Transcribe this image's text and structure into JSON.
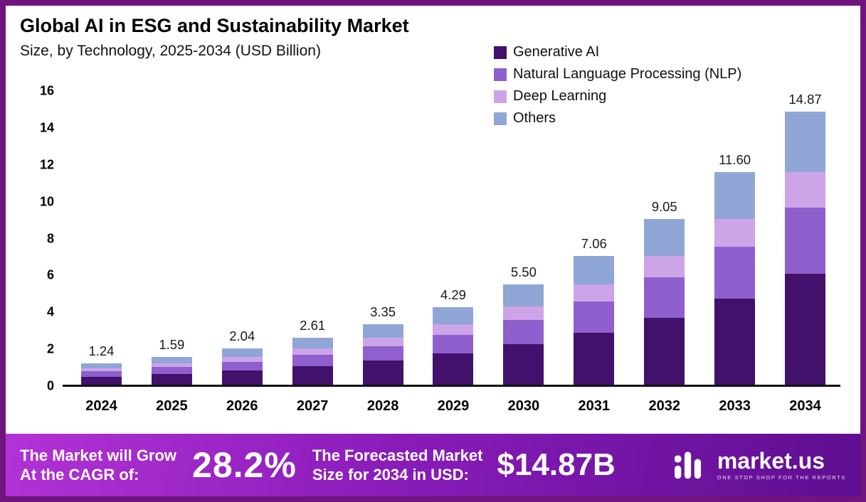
{
  "title": "Global AI in ESG and Sustainability Market",
  "subtitle": "Size, by Technology, 2025-2034 (USD Billion)",
  "chart_data": {
    "type": "bar",
    "stacked": true,
    "title": "Global AI in ESG and Sustainability Market Size, by Technology, 2025-2034 (USD Billion)",
    "categories": [
      "2024",
      "2025",
      "2026",
      "2027",
      "2028",
      "2029",
      "2030",
      "2031",
      "2032",
      "2033",
      "2034"
    ],
    "series": [
      {
        "name": "Generative AI",
        "color": "#41116b",
        "values": [
          0.51,
          0.65,
          0.84,
          1.07,
          1.37,
          1.76,
          2.26,
          2.89,
          3.71,
          4.76,
          6.1
        ]
      },
      {
        "name": "Natural Language Processing (NLP)",
        "color": "#8f5fce",
        "values": [
          0.3,
          0.38,
          0.49,
          0.63,
          0.8,
          1.03,
          1.32,
          1.69,
          2.17,
          2.78,
          3.57
        ]
      },
      {
        "name": "Deep Learning",
        "color": "#cda4e8",
        "values": [
          0.16,
          0.21,
          0.27,
          0.34,
          0.44,
          0.56,
          0.72,
          0.92,
          1.18,
          1.51,
          1.93
        ]
      },
      {
        "name": "Others",
        "color": "#8fa6d6",
        "values": [
          0.27,
          0.35,
          0.44,
          0.57,
          0.74,
          0.94,
          1.2,
          1.56,
          1.99,
          2.55,
          3.27
        ]
      }
    ],
    "totals": [
      "1.24",
      "1.59",
      "2.04",
      "2.61",
      "3.35",
      "4.29",
      "5.50",
      "7.06",
      "9.05",
      "11.60",
      "14.87"
    ],
    "ylim": [
      0,
      16
    ],
    "yticks": [
      0,
      2,
      4,
      6,
      8,
      10,
      12,
      14,
      16
    ],
    "grid": false,
    "legend_position": "top-right"
  },
  "banner": {
    "cagr_label_line1": "The Market will Grow",
    "cagr_label_line2": "At the CAGR of:",
    "cagr_value": "28.2%",
    "forecast_label_line1": "The Forecasted Market",
    "forecast_label_line2": "Size for 2034 in USD:",
    "forecast_value": "$14.87B",
    "brand_name": "market.us",
    "brand_tagline": "ONE STOP SHOP FOR THE REPORTS"
  },
  "colors": {
    "frame_border": "#70147e",
    "banner_gradient_start": "#b232d6",
    "banner_gradient_end": "#5e0e90"
  }
}
